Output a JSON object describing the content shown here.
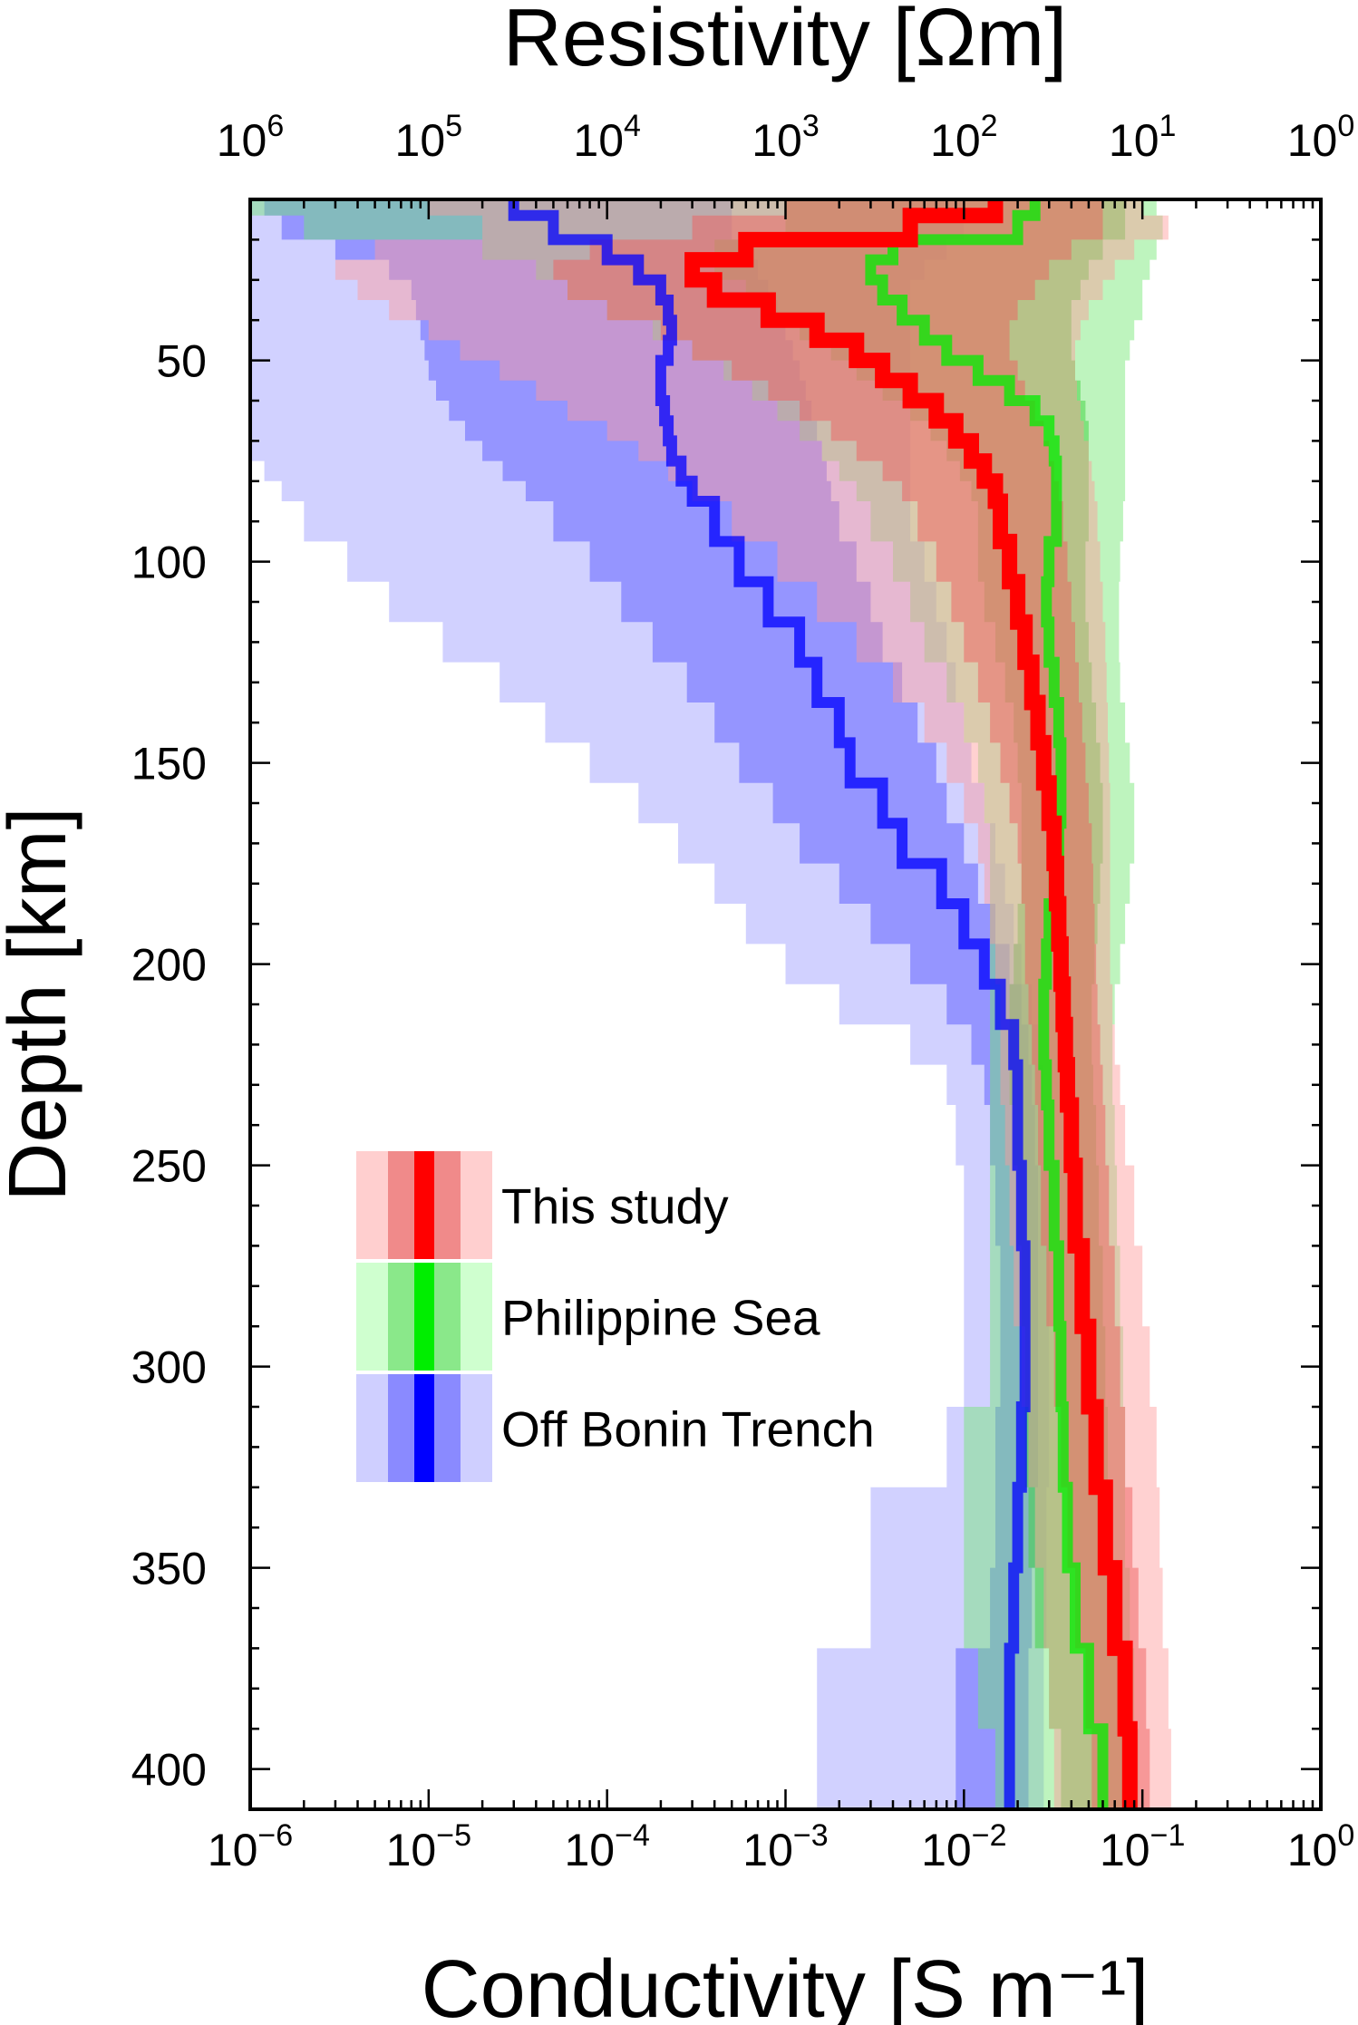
{
  "chart_data": {
    "type": "line",
    "x_top_title": "Resistivity [Ωm]",
    "x_bottom_title": "Conductivity [S m⁻¹]",
    "y_title": "Depth [km]",
    "x_scale": "log",
    "xlim": [
      1e-06,
      1
    ],
    "ylim": [
      410,
      10
    ],
    "bottom_ticks": [
      {
        "base": "10",
        "exp": "−6"
      },
      {
        "base": "10",
        "exp": "−5"
      },
      {
        "base": "10",
        "exp": "−4"
      },
      {
        "base": "10",
        "exp": "−3"
      },
      {
        "base": "10",
        "exp": "−2"
      },
      {
        "base": "10",
        "exp": "−1"
      },
      {
        "base": "10",
        "exp": "0"
      }
    ],
    "top_ticks": [
      {
        "base": "10",
        "exp": "6"
      },
      {
        "base": "10",
        "exp": "5"
      },
      {
        "base": "10",
        "exp": "4"
      },
      {
        "base": "10",
        "exp": "3"
      },
      {
        "base": "10",
        "exp": "2"
      },
      {
        "base": "10",
        "exp": "1"
      },
      {
        "base": "10",
        "exp": "0"
      }
    ],
    "depth_ticks": [
      50,
      100,
      150,
      200,
      250,
      300,
      350,
      400
    ],
    "legend_position": "lower-left",
    "series": [
      {
        "name": "Off Bonin Trench",
        "color": "#0000ff",
        "depth": [
          10,
          14,
          20,
          25,
          30,
          35,
          40,
          45,
          50,
          55,
          60,
          65,
          70,
          75,
          80,
          85,
          95,
          105,
          115,
          125,
          135,
          145,
          155,
          165,
          175,
          185,
          195,
          205,
          215,
          225,
          235,
          250,
          270,
          290,
          310,
          330,
          350,
          370,
          390,
          410
        ],
        "median": [
          3e-05,
          5e-05,
          0.0001,
          0.00015,
          0.0002,
          0.00022,
          0.00023,
          0.00022,
          0.0002,
          0.0002,
          0.00021,
          0.00022,
          0.00023,
          0.00026,
          0.0003,
          0.0004,
          0.00055,
          0.0008,
          0.0012,
          0.0015,
          0.002,
          0.0023,
          0.0035,
          0.0045,
          0.0075,
          0.01,
          0.013,
          0.016,
          0.019,
          0.02,
          0.02,
          0.021,
          0.022,
          0.022,
          0.021,
          0.02,
          0.019,
          0.018,
          0.018,
          0.018
        ],
        "inner_low": [
          1.2e-06,
          1.5e-06,
          3e-06,
          6e-06,
          8e-06,
          8.5e-06,
          9e-06,
          9.5e-06,
          1e-05,
          1.1e-05,
          1.3e-05,
          1.6e-05,
          2e-05,
          2.6e-05,
          3.5e-05,
          5e-05,
          8e-05,
          0.00012,
          0.00018,
          0.00028,
          0.0004,
          0.00055,
          0.00085,
          0.0012,
          0.002,
          0.003,
          0.005,
          0.008,
          0.011,
          0.013,
          0.014,
          0.015,
          0.016,
          0.016,
          0.015,
          0.015,
          0.014,
          0.009,
          0.009,
          0.009
        ],
        "inner_high": [
          0.0005,
          0.0005,
          0.0006,
          0.0007,
          0.0008,
          0.0009,
          0.001,
          0.0011,
          0.0012,
          0.0013,
          0.0014,
          0.0015,
          0.0016,
          0.0017,
          0.0018,
          0.002,
          0.0025,
          0.003,
          0.0035,
          0.0045,
          0.0055,
          0.007,
          0.008,
          0.01,
          0.012,
          0.015,
          0.018,
          0.021,
          0.023,
          0.024,
          0.025,
          0.026,
          0.026,
          0.026,
          0.026,
          0.025,
          0.024,
          0.023,
          0.023,
          0.023
        ],
        "outer_low": [
          1e-06,
          1e-06,
          1e-06,
          1e-06,
          1e-06,
          1e-06,
          1e-06,
          1e-06,
          1e-06,
          1e-06,
          1e-06,
          1e-06,
          1e-06,
          1.2e-06,
          1.5e-06,
          2e-06,
          3.5e-06,
          6e-06,
          1.2e-05,
          2.5e-05,
          4.5e-05,
          8e-05,
          0.00015,
          0.00025,
          0.0004,
          0.0006,
          0.001,
          0.002,
          0.005,
          0.008,
          0.009,
          0.01,
          0.01,
          0.01,
          0.008,
          0.003,
          0.003,
          0.0015,
          0.0015,
          0.0015
        ],
        "outer_high": [
          0.01,
          0.01,
          0.008,
          0.006,
          0.005,
          0.005,
          0.005,
          0.005,
          0.005,
          0.005,
          0.005,
          0.005,
          0.005,
          0.005,
          0.005,
          0.005,
          0.006,
          0.007,
          0.008,
          0.009,
          0.01,
          0.011,
          0.013,
          0.015,
          0.017,
          0.019,
          0.021,
          0.024,
          0.026,
          0.028,
          0.029,
          0.03,
          0.03,
          0.03,
          0.03,
          0.029,
          0.029,
          0.028,
          0.028,
          0.028
        ]
      },
      {
        "name": "Philippine Sea",
        "color": "#00ee00",
        "depth": [
          10,
          14,
          20,
          25,
          30,
          35,
          40,
          45,
          50,
          55,
          60,
          65,
          70,
          75,
          80,
          85,
          95,
          105,
          115,
          125,
          135,
          145,
          155,
          165,
          175,
          185,
          195,
          205,
          215,
          225,
          235,
          250,
          270,
          290,
          310,
          330,
          350,
          370,
          390,
          410
        ],
        "median": [
          0.025,
          0.02,
          0.004,
          0.003,
          0.0035,
          0.0045,
          0.006,
          0.008,
          0.012,
          0.018,
          0.025,
          0.03,
          0.032,
          0.033,
          0.033,
          0.033,
          0.03,
          0.029,
          0.03,
          0.032,
          0.034,
          0.035,
          0.035,
          0.034,
          0.032,
          0.03,
          0.029,
          0.028,
          0.028,
          0.029,
          0.03,
          0.032,
          0.034,
          0.035,
          0.036,
          0.038,
          0.042,
          0.05,
          0.06,
          0.065
        ],
        "inner_low": [
          0.001,
          0.001,
          0.0004,
          0.0004,
          0.0006,
          0.0008,
          0.0012,
          0.0018,
          0.0025,
          0.0035,
          0.005,
          0.0065,
          0.008,
          0.0095,
          0.011,
          0.012,
          0.012,
          0.013,
          0.015,
          0.017,
          0.019,
          0.02,
          0.021,
          0.021,
          0.021,
          0.02,
          0.019,
          0.018,
          0.018,
          0.018,
          0.019,
          0.02,
          0.021,
          0.022,
          0.022,
          0.023,
          0.025,
          0.03,
          0.035,
          0.038
        ],
        "inner_high": [
          0.08,
          0.08,
          0.06,
          0.05,
          0.045,
          0.04,
          0.04,
          0.04,
          0.042,
          0.045,
          0.048,
          0.05,
          0.05,
          0.05,
          0.05,
          0.05,
          0.048,
          0.048,
          0.05,
          0.052,
          0.055,
          0.058,
          0.06,
          0.06,
          0.058,
          0.056,
          0.054,
          0.052,
          0.052,
          0.053,
          0.055,
          0.057,
          0.06,
          0.062,
          0.064,
          0.066,
          0.07,
          0.075,
          0.08,
          0.085
        ],
        "outer_low": [
          1e-06,
          2e-06,
          2e-05,
          4e-05,
          6e-05,
          0.0001,
          0.00018,
          0.0003,
          0.00045,
          0.00065,
          0.0009,
          0.0012,
          0.0016,
          0.002,
          0.0025,
          0.003,
          0.004,
          0.005,
          0.006,
          0.008,
          0.01,
          0.012,
          0.013,
          0.014,
          0.014,
          0.014,
          0.014,
          0.014,
          0.014,
          0.014,
          0.014,
          0.014,
          0.014,
          0.014,
          0.01,
          0.01,
          0.01,
          0.012,
          0.015,
          0.015
        ],
        "outer_high": [
          0.12,
          0.13,
          0.12,
          0.11,
          0.1,
          0.1,
          0.09,
          0.085,
          0.08,
          0.08,
          0.08,
          0.08,
          0.08,
          0.08,
          0.08,
          0.078,
          0.075,
          0.074,
          0.074,
          0.075,
          0.08,
          0.085,
          0.09,
          0.09,
          0.085,
          0.08,
          0.075,
          0.07,
          0.068,
          0.068,
          0.07,
          0.072,
          0.075,
          0.078,
          0.08,
          0.08,
          0.085,
          0.09,
          0.095,
          0.1
        ]
      },
      {
        "name": "This study",
        "color": "#ff0000",
        "depth": [
          10,
          14,
          20,
          25,
          30,
          35,
          40,
          45,
          50,
          55,
          60,
          65,
          70,
          75,
          80,
          85,
          95,
          105,
          115,
          125,
          135,
          145,
          155,
          165,
          175,
          185,
          195,
          205,
          215,
          225,
          235,
          250,
          270,
          290,
          310,
          330,
          350,
          370,
          390,
          410
        ],
        "median": [
          0.015,
          0.005,
          0.0006,
          0.0003,
          0.0004,
          0.0008,
          0.0015,
          0.0025,
          0.0035,
          0.005,
          0.007,
          0.009,
          0.011,
          0.013,
          0.015,
          0.016,
          0.018,
          0.02,
          0.022,
          0.024,
          0.026,
          0.028,
          0.03,
          0.032,
          0.033,
          0.034,
          0.035,
          0.036,
          0.037,
          0.038,
          0.04,
          0.042,
          0.046,
          0.05,
          0.055,
          0.062,
          0.07,
          0.08,
          0.085,
          0.09
        ],
        "inner_low": [
          0.001,
          0.0003,
          8e-05,
          5e-05,
          6e-05,
          0.0001,
          0.0002,
          0.0003,
          0.0005,
          0.0008,
          0.0012,
          0.0018,
          0.0025,
          0.0035,
          0.0045,
          0.0055,
          0.007,
          0.0085,
          0.01,
          0.012,
          0.014,
          0.016,
          0.018,
          0.02,
          0.021,
          0.022,
          0.022,
          0.023,
          0.024,
          0.025,
          0.026,
          0.027,
          0.029,
          0.032,
          0.035,
          0.038,
          0.042,
          0.048,
          0.052,
          0.055
        ],
        "inner_high": [
          0.06,
          0.06,
          0.04,
          0.03,
          0.025,
          0.02,
          0.018,
          0.018,
          0.02,
          0.022,
          0.025,
          0.028,
          0.03,
          0.032,
          0.034,
          0.036,
          0.038,
          0.04,
          0.042,
          0.044,
          0.046,
          0.048,
          0.05,
          0.052,
          0.053,
          0.054,
          0.055,
          0.056,
          0.058,
          0.06,
          0.062,
          0.065,
          0.07,
          0.075,
          0.08,
          0.088,
          0.095,
          0.105,
          0.11,
          0.115
        ],
        "outer_low": [
          1e-05,
          2e-05,
          5e-06,
          3e-06,
          4e-06,
          6e-06,
          1e-05,
          1.5e-05,
          2.5e-05,
          4e-05,
          6e-05,
          0.0001,
          0.00015,
          0.00022,
          0.0003,
          0.0005,
          0.0009,
          0.0015,
          0.0025,
          0.004,
          0.006,
          0.008,
          0.01,
          0.012,
          0.013,
          0.014,
          0.015,
          0.016,
          0.016,
          0.016,
          0.017,
          0.018,
          0.019,
          0.021,
          0.023,
          0.025,
          0.028,
          0.03,
          0.032,
          0.034
        ],
        "outer_high": [
          0.1,
          0.14,
          0.09,
          0.07,
          0.06,
          0.05,
          0.045,
          0.042,
          0.042,
          0.043,
          0.045,
          0.047,
          0.05,
          0.052,
          0.054,
          0.056,
          0.058,
          0.06,
          0.062,
          0.063,
          0.064,
          0.065,
          0.066,
          0.066,
          0.066,
          0.066,
          0.066,
          0.068,
          0.07,
          0.075,
          0.08,
          0.09,
          0.1,
          0.11,
          0.12,
          0.125,
          0.13,
          0.14,
          0.145,
          0.15
        ]
      }
    ],
    "legend": [
      {
        "label": "This study",
        "color": "#ff0000",
        "inner": "#f08a8a",
        "outer": "#ffcfcf"
      },
      {
        "label": "Philippine Sea",
        "color": "#00ee00",
        "inner": "#8ae88a",
        "outer": "#cfffcf"
      },
      {
        "label": "Off Bonin Trench",
        "color": "#0000ff",
        "inner": "#8a8aff",
        "outer": "#cfcfff"
      }
    ]
  }
}
